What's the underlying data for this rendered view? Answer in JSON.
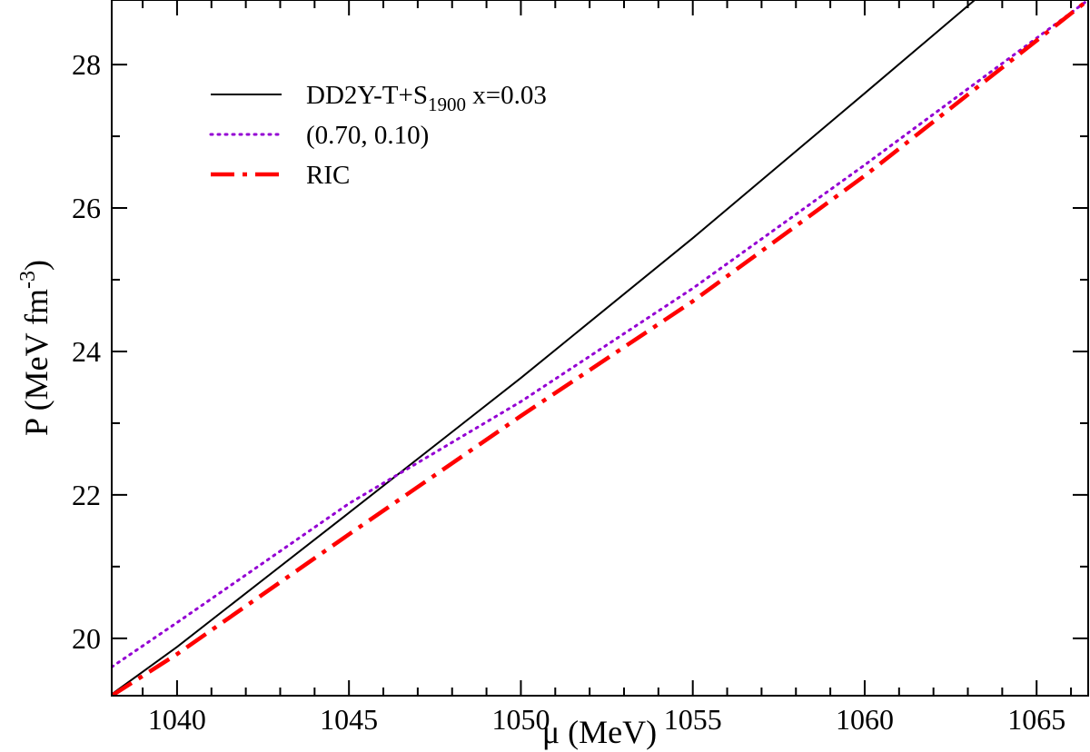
{
  "chart_data": {
    "type": "line",
    "xlabel": "μ (MeV)",
    "ylabel": {
      "main": "P (MeV fm",
      "sup": "-3",
      "close": ")"
    },
    "xlim": [
      1038.1,
      1066.5
    ],
    "ylim": [
      19.2,
      28.9
    ],
    "xticks": [
      1040,
      1045,
      1050,
      1055,
      1060,
      1065
    ],
    "yticks": [
      20,
      22,
      24,
      26,
      28
    ],
    "grid": false,
    "legend_position": "top-left",
    "series": [
      {
        "name": "DD2Y-T+S",
        "name_sub": "1900",
        "name_suffix": " x=0.03",
        "color": "#000000",
        "style": "solid",
        "x": [
          1038.1,
          1040,
          1045,
          1050,
          1055,
          1060,
          1063.2
        ],
        "y": [
          19.22,
          19.88,
          21.75,
          23.63,
          25.58,
          27.6,
          28.9
        ]
      },
      {
        "name": "(0.70, 0.10)",
        "color": "#9400D3",
        "style": "dotted",
        "x": [
          1038.1,
          1040,
          1045,
          1050,
          1055,
          1060,
          1066.5
        ],
        "y": [
          19.6,
          20.22,
          21.88,
          23.3,
          24.88,
          26.6,
          28.9
        ]
      },
      {
        "name": "RIC",
        "color": "#FF0000",
        "style": "dashdot",
        "x": [
          1038.1,
          1040,
          1045,
          1050,
          1055,
          1060,
          1066.5
        ],
        "y": [
          19.2,
          19.78,
          21.45,
          23.1,
          24.7,
          26.45,
          28.9
        ]
      }
    ]
  }
}
